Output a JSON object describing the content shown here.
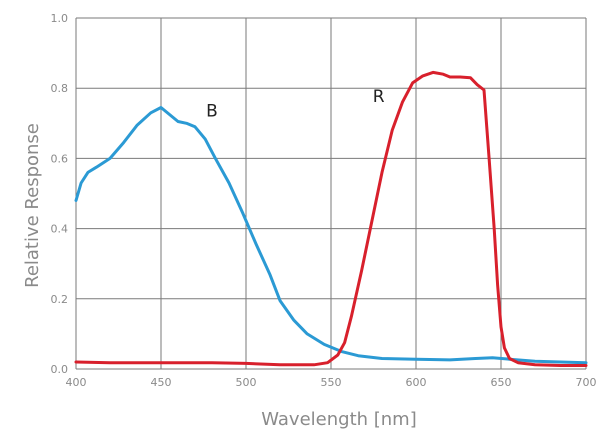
{
  "chart_data": {
    "type": "line",
    "title": "",
    "xlabel": "Wavelength [nm]",
    "ylabel": "Relative Response",
    "xlim": [
      400,
      700
    ],
    "ylim": [
      0.0,
      1.0
    ],
    "grid": true,
    "legend": "none",
    "x_ticks": [
      400,
      450,
      500,
      550,
      600,
      650,
      700
    ],
    "x_tick_labels": [
      "400",
      "450",
      "500",
      "550",
      "600",
      "650",
      "700"
    ],
    "y_ticks": [
      0.0,
      0.2,
      0.4,
      0.6,
      0.8,
      1.0
    ],
    "y_tick_labels": [
      "0.0",
      "0.2",
      "0.4",
      "0.6",
      "0.8",
      "1.0"
    ],
    "series": [
      {
        "name": "B",
        "color": "#2b9ad4",
        "x": [
          400,
          403,
          407,
          412,
          420,
          428,
          436,
          444,
          450,
          455,
          460,
          465,
          470,
          476,
          482,
          490,
          498,
          506,
          514,
          520,
          528,
          536,
          546,
          556,
          566,
          580,
          600,
          620,
          635,
          645,
          655,
          670,
          685,
          700
        ],
        "y": [
          0.48,
          0.53,
          0.56,
          0.575,
          0.6,
          0.645,
          0.695,
          0.73,
          0.745,
          0.725,
          0.705,
          0.7,
          0.69,
          0.655,
          0.6,
          0.53,
          0.445,
          0.355,
          0.27,
          0.195,
          0.14,
          0.1,
          0.07,
          0.05,
          0.038,
          0.03,
          0.028,
          0.026,
          0.03,
          0.032,
          0.028,
          0.022,
          0.02,
          0.018
        ]
      },
      {
        "name": "R",
        "color": "#d8202c",
        "x": [
          400,
          420,
          440,
          460,
          480,
          500,
          520,
          540,
          548,
          554,
          558,
          562,
          568,
          574,
          580,
          586,
          592,
          598,
          604,
          610,
          616,
          620,
          626,
          632,
          636,
          640,
          643,
          646,
          648,
          650,
          652,
          655,
          660,
          670,
          685,
          700
        ],
        "y": [
          0.02,
          0.018,
          0.018,
          0.018,
          0.018,
          0.016,
          0.012,
          0.012,
          0.018,
          0.04,
          0.075,
          0.15,
          0.28,
          0.42,
          0.56,
          0.68,
          0.76,
          0.815,
          0.835,
          0.845,
          0.84,
          0.832,
          0.832,
          0.83,
          0.81,
          0.795,
          0.6,
          0.4,
          0.24,
          0.12,
          0.06,
          0.03,
          0.018,
          0.012,
          0.01,
          0.01
        ]
      }
    ],
    "annotations": [
      {
        "text": "B",
        "x": 480,
        "y": 0.72
      },
      {
        "text": "R",
        "x": 578,
        "y": 0.76
      }
    ]
  }
}
